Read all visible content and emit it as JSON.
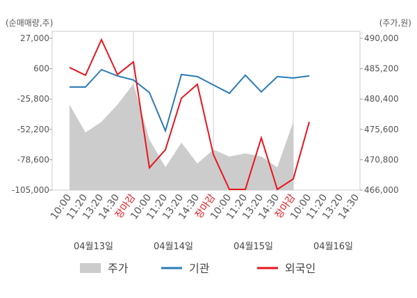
{
  "chart_data": {
    "type": "line",
    "ylabel": "(순매매량,주)",
    "y2label": "(주가,원)",
    "categories": [
      "10:00",
      "11:20",
      "13:20",
      "14:30",
      "장마감",
      "10:00",
      "11:20",
      "13:20",
      "14:30",
      "장마감",
      "10:00",
      "11:20",
      "13:20",
      "14:30",
      "장마감",
      "10:00",
      "11:20",
      "13:20",
      "14:30"
    ],
    "category_label_colors": [
      "#555",
      "#555",
      "#555",
      "#555",
      "#e8141c",
      "#555",
      "#555",
      "#555",
      "#555",
      "#e8141c",
      "#555",
      "#555",
      "#555",
      "#555",
      "#e8141c",
      "#555",
      "#555",
      "#555",
      "#555"
    ],
    "day_labels": [
      "04월13일",
      "04월14일",
      "04월15일",
      "04월16일"
    ],
    "ylim": [
      -105000,
      27000
    ],
    "yticks": [
      {
        "value": 27000,
        "label": "27,000"
      },
      600,
      {
        "value": -25800,
        "label": "-25,800"
      },
      {
        "value": -52200,
        "label": "-52,200"
      },
      {
        "value": -78600,
        "label": "-78,600"
      },
      {
        "value": -105000,
        "label": "-105,000"
      }
    ],
    "y2lim": [
      466000,
      490000
    ],
    "y2ticks": [
      {
        "value": 490000,
        "label": "490,000"
      },
      {
        "value": 485200,
        "label": "485,200"
      },
      {
        "value": 480400,
        "label": "480,400"
      },
      {
        "value": 475600,
        "label": "475,600"
      },
      {
        "value": 470800,
        "label": "470,800"
      },
      {
        "value": 466000,
        "label": "466,000"
      }
    ],
    "series": [
      {
        "name": "주가",
        "color": "#cccccc",
        "axis": "y2",
        "kind": "area",
        "values": [
          479500,
          475100,
          476800,
          479500,
          482800,
          474000,
          469600,
          473500,
          470200,
          472400,
          471300,
          471800,
          471300,
          469600,
          476800,
          null,
          null,
          null,
          null
        ]
      },
      {
        "name": "기관",
        "color": "#2a7ab8",
        "values": [
          -15400,
          -15400,
          -250,
          -5700,
          -9300,
          -20200,
          -53500,
          -4500,
          -6300,
          -13600,
          -20800,
          -5100,
          -19600,
          -6300,
          -7500,
          -5700,
          null,
          null,
          null
        ]
      },
      {
        "name": "외국인",
        "color": "#e8141c",
        "values": [
          1600,
          -5100,
          25800,
          -4500,
          6400,
          -85600,
          -69900,
          -25100,
          -13000,
          -74100,
          -104400,
          -104400,
          -59600,
          -104400,
          -95300,
          -45700,
          null,
          null,
          null
        ]
      }
    ]
  }
}
